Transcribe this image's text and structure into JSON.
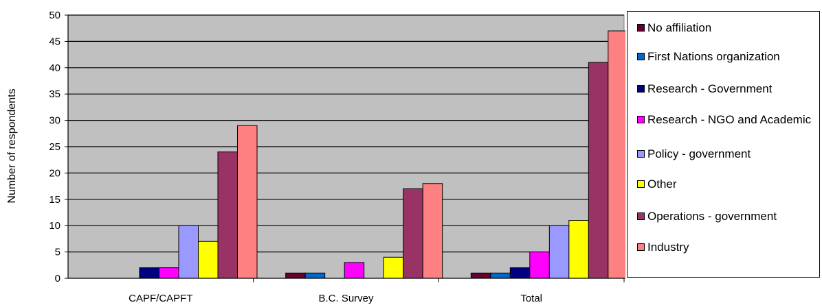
{
  "chart_data": {
    "type": "bar",
    "title": "",
    "xlabel": "",
    "ylabel": "Number of respondents",
    "ylim": [
      0,
      50
    ],
    "ytick_step": 5,
    "grid": true,
    "plot_background": "#c0c0c0",
    "legend_position": "right",
    "categories": [
      "CAPF/CAPFT",
      "B.C. Survey",
      "Total"
    ],
    "series": [
      {
        "name": "No affiliation",
        "color": "#660033",
        "values": [
          0,
          1,
          1
        ]
      },
      {
        "name": "First Nations organization",
        "color": "#0066cc",
        "values": [
          0,
          1,
          1
        ]
      },
      {
        "name": "Research - Government",
        "color": "#000080",
        "values": [
          2,
          0,
          2
        ]
      },
      {
        "name": "Research - NGO and Academic",
        "color": "#ff00ff",
        "values": [
          2,
          3,
          5
        ]
      },
      {
        "name": "Policy - government",
        "color": "#9999ff",
        "values": [
          10,
          0,
          10
        ]
      },
      {
        "name": "Other",
        "color": "#ffff00",
        "values": [
          7,
          4,
          11
        ]
      },
      {
        "name": "Operations - government",
        "color": "#993366",
        "values": [
          24,
          17,
          41
        ]
      },
      {
        "name": "Industry",
        "color": "#ff8080",
        "values": [
          29,
          18,
          47
        ]
      }
    ]
  }
}
